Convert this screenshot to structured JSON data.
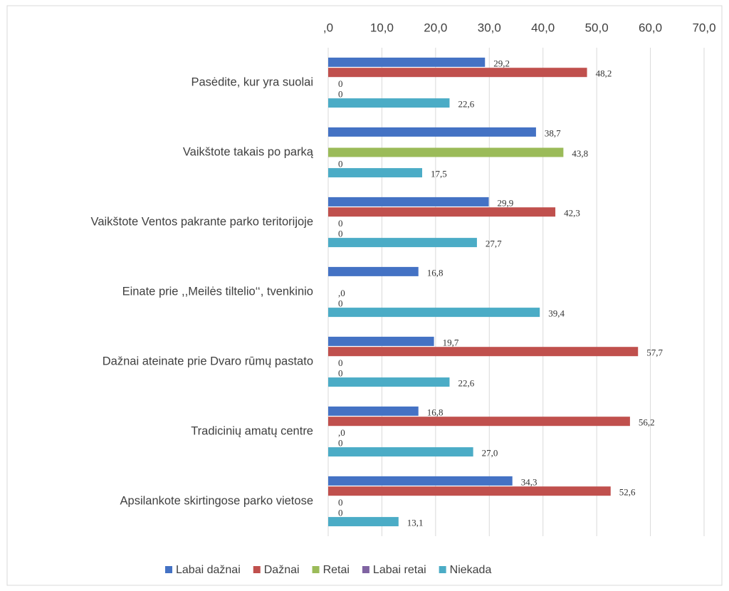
{
  "chart_data": {
    "type": "bar",
    "orientation": "horizontal",
    "categories": [
      "Pasėdite, kur yra suolai",
      "Vaikštote  takais po parką",
      "Vaikštote  Ventos pakrante parko teritorijoje",
      "Einate prie ,,Meilės tiltelio‘‘,  tvenkinio",
      "Dažnai ateinate prie Dvaro  rūmų pastato",
      "Tradicinių amatų centre",
      "Apsilankote  skirtingose parko vietose"
    ],
    "series": [
      {
        "name": "Labai dažnai",
        "color": "#4472c4",
        "values": [
          29.2,
          38.7,
          29.9,
          16.8,
          19.7,
          16.8,
          34.3
        ],
        "value_labels": [
          "29,2",
          "38,7",
          "29,9",
          "16,8",
          "19,7",
          "16,8",
          "34,3"
        ]
      },
      {
        "name": "Dažnai",
        "color": "#c0504d",
        "values": [
          48.2,
          null,
          42.3,
          null,
          57.7,
          56.2,
          52.6
        ],
        "value_labels": [
          "48,2",
          null,
          "42,3",
          null,
          "57,7",
          "56,2",
          "52,6"
        ]
      },
      {
        "name": "Retai",
        "color": "#9bbb59",
        "values": [
          0,
          43.8,
          0,
          0,
          0,
          0,
          0
        ],
        "value_labels": [
          "0",
          "43,8",
          "0",
          ",0",
          "0",
          ",0",
          "0"
        ]
      },
      {
        "name": "Labai retai",
        "color": "#8064a2",
        "values": [
          0,
          0,
          0,
          0,
          0,
          0,
          0
        ],
        "value_labels": [
          "0",
          "0",
          "0",
          "0",
          "0",
          "0",
          "0"
        ]
      },
      {
        "name": "Niekada",
        "color": "#4bacc6",
        "values": [
          22.6,
          17.5,
          27.7,
          39.4,
          22.6,
          27.0,
          13.1
        ],
        "value_labels": [
          "22,6",
          "17,5",
          "27,7",
          "39,4",
          "22,6",
          "27,0",
          "13,1"
        ]
      }
    ],
    "xlim": [
      0,
      70
    ],
    "xticks": [
      {
        "value": 0,
        "label": ",0"
      },
      {
        "value": 10,
        "label": "10,0"
      },
      {
        "value": 20,
        "label": "20,0"
      },
      {
        "value": 30,
        "label": "30,0"
      },
      {
        "value": 40,
        "label": "40,0"
      },
      {
        "value": 50,
        "label": "50,0"
      },
      {
        "value": 60,
        "label": "60,0"
      },
      {
        "value": 70,
        "label": "70,0"
      }
    ],
    "grid": true,
    "legend": "bottom"
  }
}
